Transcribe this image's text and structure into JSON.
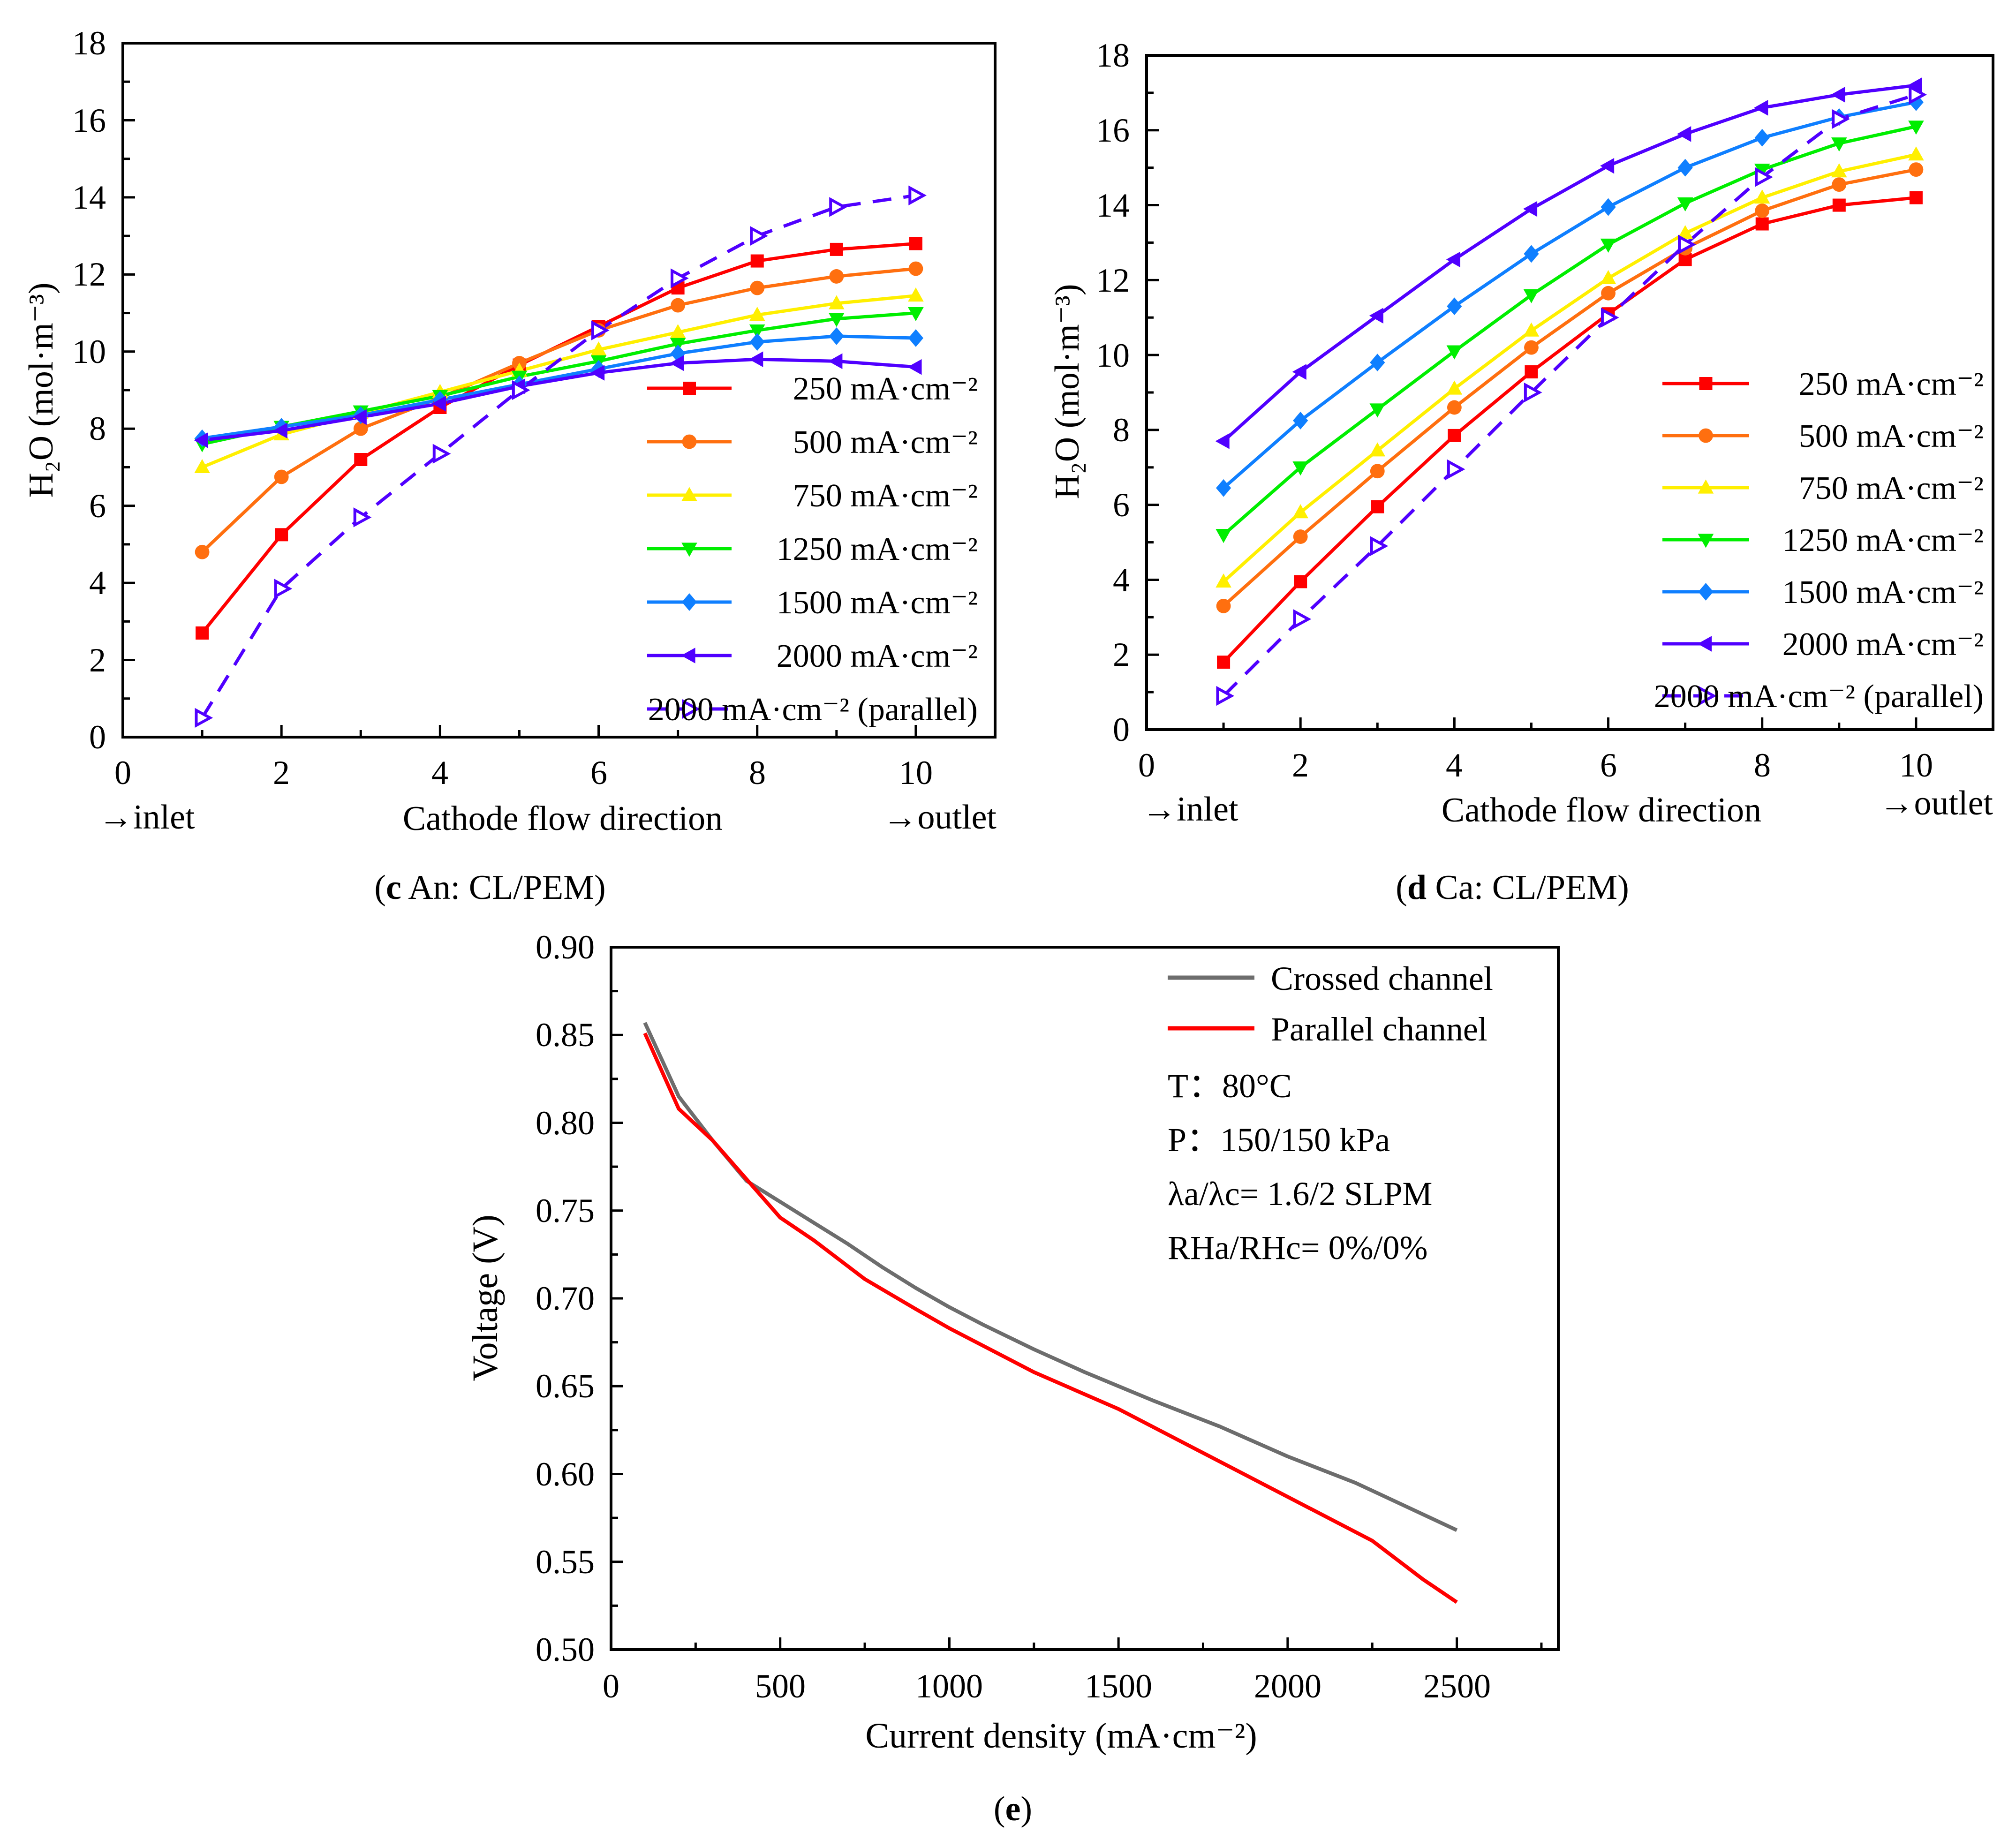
{
  "colors": {
    "s250": "#ff0000",
    "s500": "#ff6f0f",
    "s750": "#ffef00",
    "s1250": "#00ee00",
    "s1500": "#0f7fff",
    "s2000": "#5000ff",
    "parallel": "#5000ff",
    "crossed": "#6d6d6d",
    "parallel_channel": "#ff0000",
    "axis": "#000000"
  },
  "chart_data": [
    {
      "id": "c",
      "type": "line",
      "caption": {
        "letter": "c",
        "text": " An: CL/PEM"
      },
      "xlabel": "Cathode flow direction",
      "xlabel_left": "→inlet",
      "xlabel_right": "→outlet",
      "ylabel": "H₂O (mol·m⁻³)",
      "xlim": [
        0,
        11
      ],
      "ylim": [
        0,
        18
      ],
      "xticks": [
        "0",
        "2",
        "4",
        "6",
        "8",
        "10"
      ],
      "yticks": [
        "0",
        "2",
        "4",
        "6",
        "8",
        "10",
        "12",
        "14",
        "16",
        "18"
      ],
      "legend_position": "lower-right",
      "x": [
        1,
        2,
        3,
        4,
        5,
        6,
        7,
        8,
        9,
        10
      ],
      "series": [
        {
          "name": "250 mA·cm⁻²",
          "values": [
            2.7,
            5.25,
            7.2,
            8.55,
            9.65,
            10.65,
            11.65,
            12.35,
            12.65,
            12.8
          ]
        },
        {
          "name": "500 mA·cm⁻²",
          "values": [
            4.8,
            6.75,
            8.0,
            8.8,
            9.7,
            10.55,
            11.2,
            11.65,
            11.95,
            12.15
          ]
        },
        {
          "name": "750 mA·cm⁻²",
          "values": [
            7.0,
            7.85,
            8.4,
            8.95,
            9.5,
            10.05,
            10.5,
            10.95,
            11.25,
            11.45
          ]
        },
        {
          "name": "1250 mA·cm⁻²",
          "values": [
            7.6,
            8.05,
            8.45,
            8.85,
            9.35,
            9.75,
            10.2,
            10.55,
            10.85,
            11.0
          ]
        },
        {
          "name": "1500 mA·cm⁻²",
          "values": [
            7.75,
            8.05,
            8.35,
            8.75,
            9.15,
            9.55,
            9.95,
            10.25,
            10.4,
            10.35
          ]
        },
        {
          "name": "2000 mA·cm⁻²",
          "values": [
            7.7,
            7.95,
            8.3,
            8.65,
            9.1,
            9.45,
            9.7,
            9.8,
            9.75,
            9.6
          ]
        },
        {
          "name": "2000 mA·cm⁻² (parallel)",
          "values": [
            0.5,
            3.85,
            5.7,
            7.35,
            9.0,
            10.55,
            11.9,
            13.0,
            13.75,
            14.05
          ]
        }
      ]
    },
    {
      "id": "d",
      "type": "line",
      "caption": {
        "letter": "d",
        "text": " Ca: CL/PEM"
      },
      "xlabel": "Cathode flow direction",
      "xlabel_left": "→inlet",
      "xlabel_right": "→outlet",
      "ylabel": "H₂O (mol·m⁻³)",
      "xlim": [
        0,
        11
      ],
      "ylim": [
        0,
        18
      ],
      "xticks": [
        "0",
        "2",
        "4",
        "6",
        "8",
        "10"
      ],
      "yticks": [
        "0",
        "2",
        "4",
        "6",
        "8",
        "10",
        "12",
        "14",
        "16",
        "18"
      ],
      "legend_position": "lower-right",
      "x": [
        1,
        2,
        3,
        4,
        5,
        6,
        7,
        8,
        9,
        10
      ],
      "series": [
        {
          "name": "250 mA·cm⁻²",
          "values": [
            1.8,
            3.95,
            5.95,
            7.85,
            9.55,
            11.1,
            12.55,
            13.5,
            14.0,
            14.2
          ]
        },
        {
          "name": "500 mA·cm⁻²",
          "values": [
            3.3,
            5.15,
            6.9,
            8.6,
            10.2,
            11.65,
            12.85,
            13.85,
            14.55,
            14.95
          ]
        },
        {
          "name": "750 mA·cm⁻²",
          "values": [
            3.95,
            5.8,
            7.45,
            9.1,
            10.65,
            12.05,
            13.25,
            14.2,
            14.9,
            15.35
          ]
        },
        {
          "name": "1250 mA·cm⁻²",
          "values": [
            5.2,
            7.0,
            8.55,
            10.1,
            11.6,
            12.95,
            14.05,
            14.95,
            15.65,
            16.1
          ]
        },
        {
          "name": "1500 mA·cm⁻²",
          "values": [
            6.45,
            8.25,
            9.8,
            11.3,
            12.7,
            13.95,
            15.0,
            15.8,
            16.35,
            16.75
          ]
        },
        {
          "name": "2000 mA·cm⁻²",
          "values": [
            7.7,
            9.55,
            11.05,
            12.55,
            13.9,
            15.05,
            15.9,
            16.6,
            16.95,
            17.2
          ]
        },
        {
          "name": "2000 mA·cm⁻² (parallel)",
          "values": [
            0.9,
            2.95,
            4.9,
            6.95,
            9.0,
            11.0,
            12.95,
            14.75,
            16.3,
            16.95
          ]
        }
      ]
    },
    {
      "id": "e",
      "type": "line",
      "caption": {
        "letter": "e",
        "text": ""
      },
      "xlabel": "Current density (mA·cm⁻²)",
      "ylabel": "Voltage (V)",
      "xlim": [
        0,
        2800
      ],
      "ylim": [
        0.5,
        0.9
      ],
      "xticks": [
        "0",
        "500",
        "1000",
        "1500",
        "2000",
        "2500"
      ],
      "yticks": [
        "0.50",
        "0.55",
        "0.60",
        "0.65",
        "0.70",
        "0.75",
        "0.80",
        "0.85",
        "0.90"
      ],
      "legend_position": "top-right",
      "conditions": [
        "T：80°C",
        "P：150/150 kPa",
        "λa/λc= 1.6/2 SLPM",
        "RHa/RHc= 0%/0%"
      ],
      "series": [
        {
          "name": "Crossed channel",
          "x": [
            100,
            200,
            300,
            400,
            500,
            600,
            700,
            800,
            900,
            1000,
            1100,
            1250,
            1400,
            1500,
            1600,
            1800,
            2000,
            2200,
            2400,
            2500
          ],
          "values": [
            0.857,
            0.815,
            0.79,
            0.767,
            0.755,
            0.743,
            0.731,
            0.718,
            0.706,
            0.695,
            0.685,
            0.671,
            0.658,
            0.65,
            0.642,
            0.627,
            0.61,
            0.595,
            0.577,
            0.568
          ]
        },
        {
          "name": "Parallel channel",
          "x": [
            100,
            200,
            300,
            400,
            500,
            600,
            750,
            900,
            1000,
            1250,
            1500,
            1750,
            2000,
            2250,
            2400,
            2500
          ],
          "values": [
            0.851,
            0.808,
            0.79,
            0.768,
            0.746,
            0.733,
            0.711,
            0.694,
            0.683,
            0.658,
            0.637,
            0.612,
            0.587,
            0.562,
            0.54,
            0.527
          ]
        }
      ]
    }
  ]
}
